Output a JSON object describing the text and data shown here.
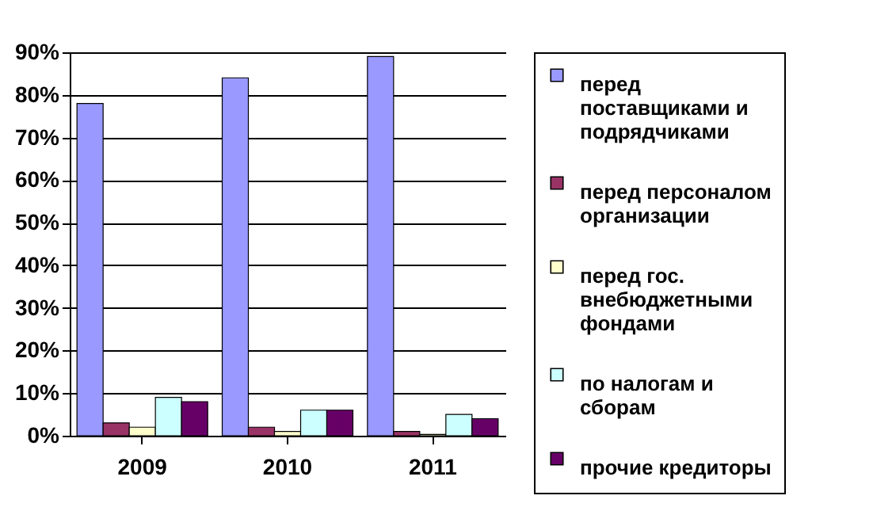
{
  "chart_data": {
    "type": "bar",
    "categories": [
      "2009",
      "2010",
      "2011"
    ],
    "series": [
      {
        "name": "перед поставщиками и подрядчиками",
        "color": "#9999ff",
        "values": [
          78,
          84,
          89
        ]
      },
      {
        "name": "перед персоналом организации",
        "color": "#993366",
        "values": [
          3,
          2,
          1
        ]
      },
      {
        "name": "перед гос. внебюджетными фондами",
        "color": "#ffffcc",
        "values": [
          2,
          1,
          0.3
        ]
      },
      {
        "name": "по налогам и сборам",
        "color": "#ccffff",
        "values": [
          9,
          6,
          5
        ]
      },
      {
        "name": "прочие кредиторы",
        "color": "#660066",
        "values": [
          8,
          6,
          4
        ]
      }
    ],
    "ylim": [
      0,
      90
    ],
    "yticks": [
      {
        "value": 0,
        "label": "0%"
      },
      {
        "value": 10,
        "label": "10%"
      },
      {
        "value": 20,
        "label": "20%"
      },
      {
        "value": 30,
        "label": "30%"
      },
      {
        "value": 40,
        "label": "40%"
      },
      {
        "value": 50,
        "label": "50%"
      },
      {
        "value": 60,
        "label": "60%"
      },
      {
        "value": 70,
        "label": "70%"
      },
      {
        "value": 80,
        "label": "80%"
      },
      {
        "value": 90,
        "label": "90%"
      }
    ],
    "grid": "y",
    "legend": "right"
  }
}
